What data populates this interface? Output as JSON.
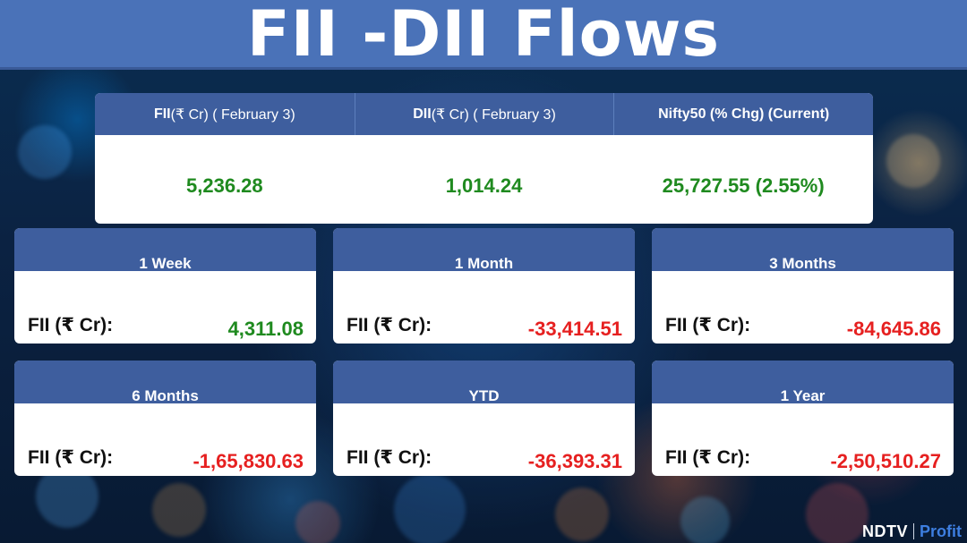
{
  "title": "FII -DII Flows",
  "top": [
    {
      "head_bold": "FII",
      "head_rest": "(₹ Cr) ( February 3)",
      "value": "5,236.28"
    },
    {
      "head_bold": "DII",
      "head_rest": "(₹ Cr) ( February 3)",
      "value": "1,014.24"
    },
    {
      "head_bold": "Nifty50 (% Chg) (Current)",
      "head_rest": "",
      "value": "25,727.55 (2.55%)"
    }
  ],
  "periods": [
    {
      "title": "1 Week",
      "label": "FII (₹ Cr):",
      "value": "4,311.08",
      "sign": "positive"
    },
    {
      "title": "1 Month",
      "label": "FII (₹ Cr):",
      "value": "-33,414.51",
      "sign": "negative"
    },
    {
      "title": "3 Months",
      "label": "FII (₹ Cr):",
      "value": "-84,645.86",
      "sign": "negative"
    },
    {
      "title": "6 Months",
      "label": "FII (₹ Cr):",
      "value": "-1,65,830.63",
      "sign": "negative"
    },
    {
      "title": "YTD",
      "label": "FII (₹ Cr):",
      "value": "-36,393.31",
      "sign": "negative"
    },
    {
      "title": "1 Year",
      "label": "FII (₹ Cr):",
      "value": "-2,50,510.27",
      "sign": "negative"
    }
  ],
  "colors": {
    "header_blue": "#3e5e9e",
    "title_bar": "#4a72b8",
    "positive": "#1f8a1f",
    "negative": "#e62020"
  },
  "logo": {
    "brand": "NDTV",
    "sub": "Profit"
  }
}
